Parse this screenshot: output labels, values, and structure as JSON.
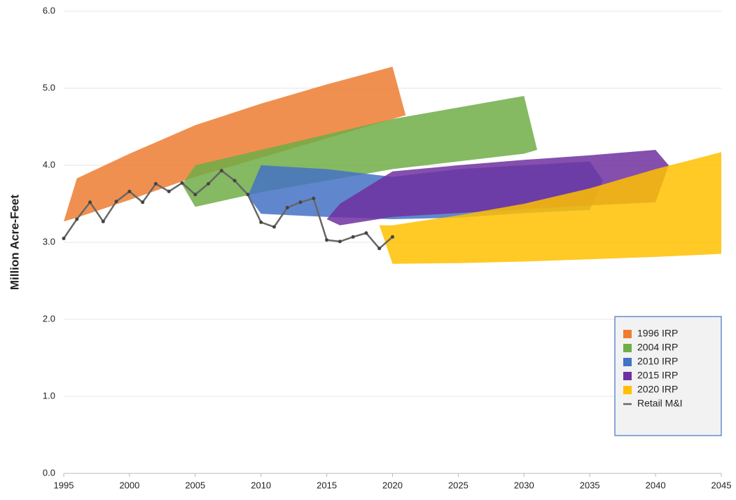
{
  "chart_data": {
    "type": "band",
    "y_label": "Million Acre-Feet",
    "xlim": [
      1995,
      2045
    ],
    "xticks": [
      1995,
      2000,
      2005,
      2010,
      2015,
      2020,
      2025,
      2030,
      2035,
      2040,
      2045
    ],
    "ylim": [
      0,
      6
    ],
    "yticks": [
      {
        "value": 0,
        "label": "0.0"
      },
      {
        "value": 1,
        "label": "1.0"
      },
      {
        "value": 2,
        "label": "2.0"
      },
      {
        "value": 3,
        "label": "3.0"
      },
      {
        "value": 4,
        "label": "4.0"
      },
      {
        "value": 5,
        "label": "5.0"
      },
      {
        "value": 6,
        "label": "6.0"
      }
    ],
    "grid": true,
    "legend": "lower right",
    "series": [
      {
        "name": "1996 IRP",
        "color": "#ed7d31",
        "x": [
          1995,
          1996,
          2000,
          2005,
          2010,
          2015,
          2020,
          2021
        ],
        "high": [
          3.27,
          3.83,
          4.15,
          4.52,
          4.8,
          5.05,
          5.28,
          4.65
        ],
        "low": [
          3.27,
          3.32,
          3.55,
          3.85,
          4.1,
          4.35,
          4.6,
          4.65
        ]
      },
      {
        "name": "2004 IRP",
        "color": "#70ad47",
        "x": [
          2004,
          2005,
          2010,
          2015,
          2020,
          2025,
          2030,
          2031
        ],
        "high": [
          3.75,
          4.0,
          4.2,
          4.4,
          4.6,
          4.75,
          4.9,
          4.2
        ],
        "low": [
          3.75,
          3.46,
          3.65,
          3.8,
          3.95,
          4.05,
          4.15,
          4.2
        ]
      },
      {
        "name": "2010 IRP",
        "color": "#4472c4",
        "x": [
          2009,
          2010,
          2015,
          2020,
          2025,
          2030,
          2035,
          2036
        ],
        "high": [
          3.6,
          4.0,
          3.95,
          3.85,
          3.95,
          4.0,
          4.05,
          3.8
        ],
        "low": [
          3.6,
          3.37,
          3.33,
          3.3,
          3.32,
          3.38,
          3.42,
          3.8
        ]
      },
      {
        "name": "2015 IRP",
        "color": "#7030a0",
        "x": [
          2015,
          2016,
          2020,
          2025,
          2030,
          2035,
          2040,
          2041
        ],
        "high": [
          3.3,
          3.5,
          3.92,
          4.0,
          4.07,
          4.13,
          4.2,
          4.0
        ],
        "low": [
          3.3,
          3.22,
          3.33,
          3.38,
          3.43,
          3.48,
          3.52,
          4.0
        ]
      },
      {
        "name": "2020 IRP",
        "color": "#ffc000",
        "x": [
          2019,
          2020,
          2025,
          2030,
          2035,
          2040,
          2045
        ],
        "high": [
          3.22,
          3.22,
          3.35,
          3.5,
          3.7,
          3.95,
          4.17
        ],
        "low": [
          3.22,
          2.72,
          2.73,
          2.75,
          2.78,
          2.81,
          2.85
        ]
      },
      {
        "name": "Retail M&I",
        "type": "line",
        "color": "#666666",
        "x": [
          1995,
          1996,
          1997,
          1998,
          1999,
          2000,
          2001,
          2002,
          2003,
          2004,
          2005,
          2006,
          2007,
          2008,
          2009,
          2010,
          2011,
          2012,
          2013,
          2014,
          2015,
          2016,
          2017,
          2018,
          2019,
          2020
        ],
        "values": [
          3.05,
          3.3,
          3.52,
          3.27,
          3.53,
          3.66,
          3.52,
          3.76,
          3.66,
          3.77,
          3.62,
          3.76,
          3.93,
          3.8,
          3.62,
          3.26,
          3.2,
          3.45,
          3.52,
          3.57,
          3.03,
          3.01,
          3.07,
          3.12,
          2.92,
          3.07
        ]
      }
    ]
  }
}
